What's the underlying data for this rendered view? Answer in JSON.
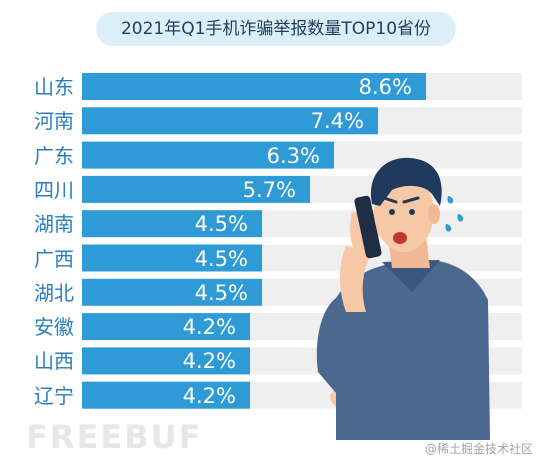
{
  "chart_data": {
    "type": "bar",
    "orientation": "horizontal",
    "title": "2021年Q1手机诈骗举报数量TOP10省份",
    "categories": [
      "山东",
      "河南",
      "广东",
      "四川",
      "湖南",
      "广西",
      "湖北",
      "安徽",
      "山西",
      "辽宁"
    ],
    "values": [
      8.6,
      7.4,
      6.3,
      5.7,
      4.5,
      4.5,
      4.5,
      4.2,
      4.2,
      4.2
    ],
    "value_labels": [
      "8.6%",
      "7.4%",
      "6.3%",
      "5.7%",
      "4.5%",
      "4.5%",
      "4.5%",
      "4.2%",
      "4.2%",
      "4.2%"
    ],
    "xlim": [
      0,
      11
    ],
    "grid": false,
    "legend": "none",
    "colors": {
      "bar": "#2f9bd6",
      "track": "#efefef",
      "label": "#2a7fbf",
      "title_bg": "#dceef8",
      "title_text": "#1d3f5c"
    }
  },
  "watermark": {
    "left_text": "FREEBUF",
    "right_text": "@稀土掘金技术社区"
  },
  "illustration": {
    "icon": "worried-man-on-phone-icon"
  }
}
